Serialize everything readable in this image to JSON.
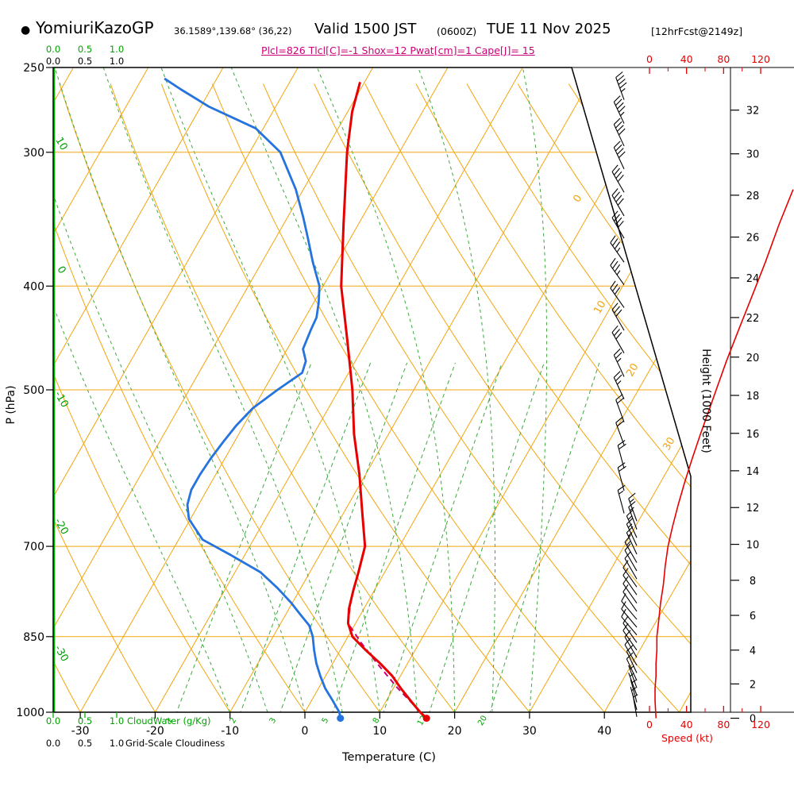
{
  "header": {
    "bullet": "●",
    "station": "YomiuriKazoGP",
    "coords": "36.1589°,139.68° (36,22)",
    "valid_time": "Valid 1500 JST",
    "valid_z": "(0600Z)",
    "valid_date": "TUE 11 Nov 2025",
    "forecast_ref": "[12hrFcst@2149z]",
    "params_line": "Plcl=826 Tlcl[C]=-1 Shox=12 Pwat[cm]=1 Cape[J]= 15"
  },
  "diagnostics": {
    "plcl_hpa": 826,
    "tlcl_c": -1,
    "showalter": 12,
    "pwat_cm": 1,
    "cape_j": 15
  },
  "axes": {
    "pressure": {
      "title": "P (hPa)",
      "ticks": [
        250,
        300,
        400,
        500,
        700,
        850,
        1000
      ]
    },
    "temperature": {
      "title": "Temperature (C)",
      "ticks": [
        -30,
        -20,
        -10,
        0,
        10,
        20,
        30,
        40
      ]
    },
    "height": {
      "title": "Height (1000 Feet)",
      "ticks": [
        0,
        2,
        4,
        6,
        8,
        10,
        12,
        14,
        16,
        18,
        20,
        22,
        24,
        26,
        28,
        30,
        32
      ]
    },
    "speed": {
      "title": "Speed (kt)",
      "ticks": [
        0,
        40,
        80,
        120
      ]
    },
    "cloudwater": {
      "title": "CloudWater (g/Kg)",
      "ticks": [
        "0.0",
        "0.5",
        "1.0"
      ]
    },
    "cloudiness": {
      "title": "Grid-Scale Cloudiness",
      "ticks": [
        "0.0",
        "0.5",
        "1.0"
      ]
    }
  },
  "line_labels": {
    "dry_adiabat_left": [
      "10",
      "0",
      "-10",
      "-20",
      "-30"
    ],
    "isotherm_right": [
      "0",
      "10",
      "20",
      "30"
    ],
    "mixing_ratio": [
      "1",
      "2",
      "3",
      "5",
      "8",
      "12",
      "20"
    ]
  },
  "chart_data": {
    "type": "skewt_logp",
    "pressure_range_hpa": [
      250,
      1050
    ],
    "surface": {
      "pressure_hpa": 1013,
      "temperature_c": 16.7,
      "dewpoint_c": 5.2
    },
    "temperature_profile": [
      [
        1013,
        16.7
      ],
      [
        1000,
        15.4
      ],
      [
        975,
        13.2
      ],
      [
        950,
        11.0
      ],
      [
        925,
        8.9
      ],
      [
        900,
        6.3
      ],
      [
        875,
        3.4
      ],
      [
        850,
        0.6
      ],
      [
        826,
        -1.0
      ],
      [
        800,
        -2.0
      ],
      [
        770,
        -2.8
      ],
      [
        740,
        -3.5
      ],
      [
        700,
        -4.6
      ],
      [
        650,
        -7.6
      ],
      [
        600,
        -10.8
      ],
      [
        550,
        -14.6
      ],
      [
        500,
        -18.2
      ],
      [
        450,
        -22.6
      ],
      [
        400,
        -27.6
      ],
      [
        350,
        -32.0
      ],
      [
        300,
        -37.0
      ],
      [
        275,
        -39.4
      ],
      [
        258,
        -40.6
      ]
    ],
    "dewpoint_profile": [
      [
        1013,
        5.2
      ],
      [
        1000,
        4.6
      ],
      [
        975,
        2.8
      ],
      [
        950,
        0.9
      ],
      [
        925,
        -0.7
      ],
      [
        900,
        -2.2
      ],
      [
        875,
        -3.5
      ],
      [
        850,
        -4.7
      ],
      [
        830,
        -6.0
      ],
      [
        810,
        -8.1
      ],
      [
        790,
        -10.2
      ],
      [
        765,
        -13.2
      ],
      [
        740,
        -16.6
      ],
      [
        713,
        -21.9
      ],
      [
        690,
        -26.8
      ],
      [
        660,
        -30.2
      ],
      [
        640,
        -31.5
      ],
      [
        620,
        -32.1
      ],
      [
        600,
        -32.1
      ],
      [
        580,
        -31.9
      ],
      [
        560,
        -31.5
      ],
      [
        540,
        -31.0
      ],
      [
        520,
        -30.1
      ],
      [
        500,
        -28.2
      ],
      [
        482,
        -26.2
      ],
      [
        470,
        -26.6
      ],
      [
        458,
        -27.9
      ],
      [
        440,
        -28.3
      ],
      [
        428,
        -28.5
      ],
      [
        415,
        -29.3
      ],
      [
        400,
        -30.5
      ],
      [
        380,
        -33.2
      ],
      [
        360,
        -35.8
      ],
      [
        345,
        -37.9
      ],
      [
        325,
        -41.0
      ],
      [
        300,
        -45.9
      ],
      [
        285,
        -51.0
      ],
      [
        272,
        -58.9
      ],
      [
        262,
        -64.0
      ],
      [
        256,
        -67.0
      ]
    ],
    "parcel_path": [
      [
        1013,
        16.7
      ],
      [
        950,
        10.6
      ],
      [
        900,
        5.9
      ],
      [
        860,
        2.1
      ],
      [
        826,
        -1.0
      ],
      [
        800,
        -1.9
      ],
      [
        778,
        -2.6
      ]
    ],
    "wind_speed_profile_kt": [
      [
        1013,
        7
      ],
      [
        975,
        6
      ],
      [
        950,
        6
      ],
      [
        925,
        7
      ],
      [
        900,
        7
      ],
      [
        875,
        8
      ],
      [
        850,
        8
      ],
      [
        820,
        10
      ],
      [
        790,
        12
      ],
      [
        760,
        15
      ],
      [
        730,
        17
      ],
      [
        700,
        20
      ],
      [
        670,
        25
      ],
      [
        640,
        31
      ],
      [
        610,
        38
      ],
      [
        580,
        46
      ],
      [
        550,
        55
      ],
      [
        520,
        65
      ],
      [
        500,
        72
      ],
      [
        470,
        83
      ],
      [
        440,
        96
      ],
      [
        410,
        110
      ],
      [
        380,
        125
      ],
      [
        350,
        140
      ],
      [
        325,
        155
      ],
      [
        300,
        168
      ],
      [
        270,
        185
      ]
    ],
    "wind_barbs": [
      [
        268,
        340,
        45
      ],
      [
        282,
        335,
        45
      ],
      [
        296,
        335,
        42
      ],
      [
        311,
        335,
        42
      ],
      [
        327,
        330,
        40
      ],
      [
        344,
        330,
        40
      ],
      [
        361,
        330,
        38
      ],
      [
        380,
        325,
        35
      ],
      [
        399,
        325,
        35
      ],
      [
        419,
        325,
        32
      ],
      [
        440,
        330,
        30
      ],
      [
        462,
        330,
        28
      ],
      [
        486,
        335,
        25
      ],
      [
        510,
        335,
        25
      ],
      [
        536,
        340,
        22
      ],
      [
        563,
        340,
        20
      ],
      [
        592,
        345,
        20
      ],
      [
        621,
        345,
        18
      ],
      [
        652,
        345,
        15
      ],
      [
        663,
        340,
        15
      ],
      [
        675,
        340,
        15
      ],
      [
        687,
        335,
        14
      ],
      [
        699,
        335,
        14
      ],
      [
        712,
        335,
        13
      ],
      [
        725,
        330,
        13
      ],
      [
        738,
        330,
        12
      ],
      [
        751,
        330,
        12
      ],
      [
        764,
        325,
        12
      ],
      [
        777,
        325,
        11
      ],
      [
        791,
        325,
        11
      ],
      [
        805,
        325,
        10
      ],
      [
        819,
        320,
        10
      ],
      [
        833,
        320,
        10
      ],
      [
        847,
        320,
        10
      ],
      [
        861,
        325,
        9
      ],
      [
        875,
        325,
        9
      ],
      [
        889,
        330,
        9
      ],
      [
        904,
        330,
        8
      ],
      [
        919,
        335,
        8
      ],
      [
        934,
        335,
        8
      ],
      [
        949,
        340,
        7
      ],
      [
        964,
        340,
        7
      ],
      [
        979,
        345,
        7
      ],
      [
        995,
        345,
        6
      ],
      [
        1010,
        350,
        6
      ]
    ],
    "isotherms_c": {
      "start": -120,
      "end": 50,
      "step": 10
    },
    "dry_adiabats_c": {
      "start": -40,
      "end": 120,
      "step": 10
    },
    "moist_adiabats_c": {
      "start": -10,
      "end": 30,
      "step": 5
    },
    "mixing_ratio_gkg": [
      1,
      2,
      3,
      5,
      8,
      12,
      20
    ],
    "isobar_lines_hpa": [
      300,
      400,
      500,
      700,
      850,
      1000
    ],
    "cloudwater_profile_gkg": 0.0
  },
  "colors": {
    "orange": "#F2A50C",
    "green_line": "#3DA83D",
    "green_bright": "#00B400",
    "green_label": "#00A300",
    "red": "#E60000",
    "blue": "#2573DE",
    "magenta": "#CC0077",
    "black": "#000000"
  }
}
